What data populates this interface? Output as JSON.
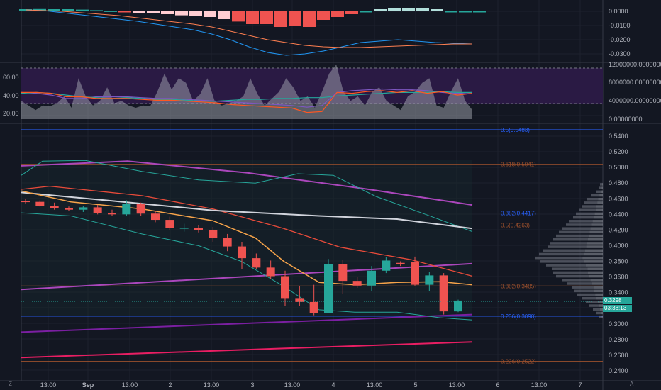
{
  "colors": {
    "bg": "#131722",
    "grid": "#1e222d",
    "up": "#26a69a",
    "down": "#ef5350",
    "fib_blue": "#2962ff",
    "fib_orange": "#a0522d",
    "purple_band": "#3b1f5b",
    "ma_white": "#d1d4dc",
    "ma_orange": "#f7a44a",
    "ma_red": "#e84b3a",
    "ma_purple": "#ab47bc",
    "ma_magenta": "#e91e63",
    "ma_cyan": "#26c6da",
    "ma_violet": "#7b1fa2"
  },
  "time_axis": {
    "labels": [
      "13:00",
      "Sep",
      "13:00",
      "2",
      "13:00",
      "3",
      "13:00",
      "4",
      "13:00",
      "5",
      "13:00",
      "6",
      "13:00",
      "7"
    ]
  },
  "macd_pane": {
    "ticks": [
      "0.0000",
      "-0.0100",
      "-0.0200",
      "-0.0300"
    ]
  },
  "rsi_pane": {
    "left_ticks": [
      "60.00",
      "40.00",
      "20.00"
    ],
    "right_ticks": [
      "12000000.00000000",
      "8000000.00000000",
      "4000000.00000000",
      "0.00000000"
    ]
  },
  "price_pane": {
    "ticks": [
      "0.5400",
      "0.5200",
      "0.5000",
      "0.4800",
      "0.4600",
      "0.4400",
      "0.4200",
      "0.4000",
      "0.3800",
      "0.3600",
      "0.3400",
      "0.3200",
      "0.3000",
      "0.2800",
      "0.2600",
      "0.2400"
    ],
    "fib_levels": [
      {
        "label": "0.5(0.5483)",
        "color": "#2962ff"
      },
      {
        "label": "0.618(0.5041)",
        "color": "#a0522d"
      },
      {
        "label": "0.382(0.4417)",
        "color": "#2962ff"
      },
      {
        "label": "0.5(0.4263)",
        "color": "#a0522d"
      },
      {
        "label": "0.382(0.3485)",
        "color": "#a0522d"
      },
      {
        "label": "0.236(0.3098)",
        "color": "#2962ff"
      },
      {
        "label": "0.236(0.2522)",
        "color": "#a0522d"
      }
    ],
    "last_price": "0.3298",
    "countdown": "03:38:13"
  },
  "corner_labels": {
    "left": "Z",
    "right": "A"
  },
  "chart_data": {
    "type": "candlestick",
    "candles": [
      [
        0.457,
        0.46,
        0.454,
        0.456
      ],
      [
        0.456,
        0.458,
        0.45,
        0.451
      ],
      [
        0.451,
        0.455,
        0.446,
        0.448
      ],
      [
        0.448,
        0.45,
        0.444,
        0.446
      ],
      [
        0.446,
        0.451,
        0.443,
        0.449
      ],
      [
        0.449,
        0.452,
        0.44,
        0.442
      ],
      [
        0.442,
        0.446,
        0.438,
        0.44
      ],
      [
        0.44,
        0.458,
        0.438,
        0.453
      ],
      [
        0.453,
        0.455,
        0.438,
        0.441
      ],
      [
        0.441,
        0.444,
        0.43,
        0.433
      ],
      [
        0.433,
        0.437,
        0.42,
        0.423
      ],
      [
        0.423,
        0.428,
        0.418,
        0.423
      ],
      [
        0.423,
        0.426,
        0.417,
        0.42
      ],
      [
        0.42,
        0.424,
        0.405,
        0.41
      ],
      [
        0.41,
        0.415,
        0.393,
        0.399
      ],
      [
        0.399,
        0.405,
        0.37,
        0.384
      ],
      [
        0.384,
        0.39,
        0.37,
        0.372
      ],
      [
        0.372,
        0.381,
        0.358,
        0.361
      ],
      [
        0.361,
        0.368,
        0.323,
        0.333
      ],
      [
        0.333,
        0.348,
        0.323,
        0.328
      ],
      [
        0.328,
        0.35,
        0.311,
        0.314
      ],
      [
        0.314,
        0.383,
        0.314,
        0.376
      ],
      [
        0.376,
        0.382,
        0.338,
        0.355
      ],
      [
        0.355,
        0.36,
        0.346,
        0.349
      ],
      [
        0.349,
        0.374,
        0.342,
        0.368
      ],
      [
        0.368,
        0.385,
        0.365,
        0.381
      ],
      [
        0.378,
        0.38,
        0.374,
        0.377
      ],
      [
        0.379,
        0.386,
        0.349,
        0.35
      ],
      [
        0.35,
        0.366,
        0.342,
        0.362
      ],
      [
        0.362,
        0.365,
        0.312,
        0.316
      ],
      [
        0.316,
        0.331,
        0.315,
        0.3298
      ]
    ],
    "macd_hist": [
      0.002,
      0.0021,
      0.0018,
      0.0019,
      0.0012,
      0.0008,
      0.0003,
      -0.0005,
      -0.001,
      -0.0015,
      -0.002,
      -0.0028,
      -0.0032,
      -0.004,
      -0.0055,
      -0.0072,
      -0.009,
      -0.009,
      -0.011,
      -0.0105,
      -0.011,
      -0.006,
      -0.004,
      -0.002,
      0.0,
      0.002,
      0.0025,
      0.0025,
      0.0025,
      0.002,
      0.0,
      0.0,
      0.0
    ],
    "macd_hist_up": [
      false,
      false,
      false,
      false,
      false,
      false,
      false,
      false,
      true,
      true,
      true,
      true,
      true,
      true,
      true,
      false,
      false,
      false,
      false,
      false,
      false,
      false,
      false,
      false,
      false,
      true,
      true,
      true,
      true,
      true,
      false,
      false,
      false
    ],
    "macd_line": [
      0.001,
      0.0005,
      -0.001,
      -0.0025,
      -0.004,
      -0.0055,
      -0.007,
      -0.009,
      -0.011,
      -0.013,
      -0.016,
      -0.02,
      -0.025,
      -0.029,
      -0.031,
      -0.03,
      -0.028,
      -0.025,
      -0.022,
      -0.021,
      -0.02,
      -0.021,
      -0.022,
      -0.0225,
      -0.023
    ],
    "signal_line": [
      0.001,
      0.0005,
      0.0,
      -0.001,
      -0.002,
      -0.003,
      -0.0045,
      -0.006,
      -0.0075,
      -0.009,
      -0.011,
      -0.014,
      -0.017,
      -0.02,
      -0.022,
      -0.024,
      -0.025,
      -0.0255,
      -0.0255,
      -0.025,
      -0.0245,
      -0.024,
      -0.0235,
      -0.023,
      -0.023
    ],
    "rsi_a": [
      45,
      45,
      44,
      40,
      40,
      38,
      38,
      38,
      37,
      36,
      36,
      35,
      34,
      33,
      31,
      30,
      29,
      28,
      27,
      22,
      23,
      45,
      44,
      46,
      47,
      45,
      47,
      44,
      46,
      42,
      44
    ],
    "rsi_b": [
      44,
      45,
      44,
      42,
      40,
      39,
      38,
      39,
      38,
      37,
      37,
      36,
      35,
      35,
      36,
      37,
      37,
      38,
      38,
      39,
      39,
      41,
      42,
      43,
      44,
      45,
      45,
      45,
      46,
      45,
      45
    ],
    "rsi_c": [
      45,
      44,
      42,
      38,
      38,
      40,
      40,
      40,
      39,
      38,
      38,
      37,
      36,
      35,
      34,
      33,
      32,
      31,
      30,
      28,
      30,
      45,
      47,
      48,
      49,
      48,
      48,
      47,
      45,
      44,
      45
    ],
    "volume": [
      4000000,
      3000000,
      2000000,
      3000000,
      2800000,
      3500000,
      5000000,
      2500000,
      9000000,
      5000000,
      3000000,
      4000000,
      7000000,
      3500000,
      4000000,
      3000000,
      2500000,
      3000000,
      2800000,
      6000000,
      10000000,
      6500000,
      9000000,
      8000000,
      4000000,
      5500000,
      9000000,
      4000000,
      3000000,
      3500000,
      4000000,
      5000000,
      9000000,
      5500000,
      3000000,
      4500000,
      6000000,
      9000000,
      7000000,
      4000000,
      5000000,
      2500000,
      6000000,
      10000000,
      12000000,
      6000000,
      4000000,
      5000000,
      3000000,
      6000000,
      7000000,
      4000000,
      3000000,
      2000000,
      5000000,
      6000000,
      8000000,
      9000000,
      3000000,
      2500000,
      6000000,
      9000000,
      4000000,
      2000000
    ]
  }
}
